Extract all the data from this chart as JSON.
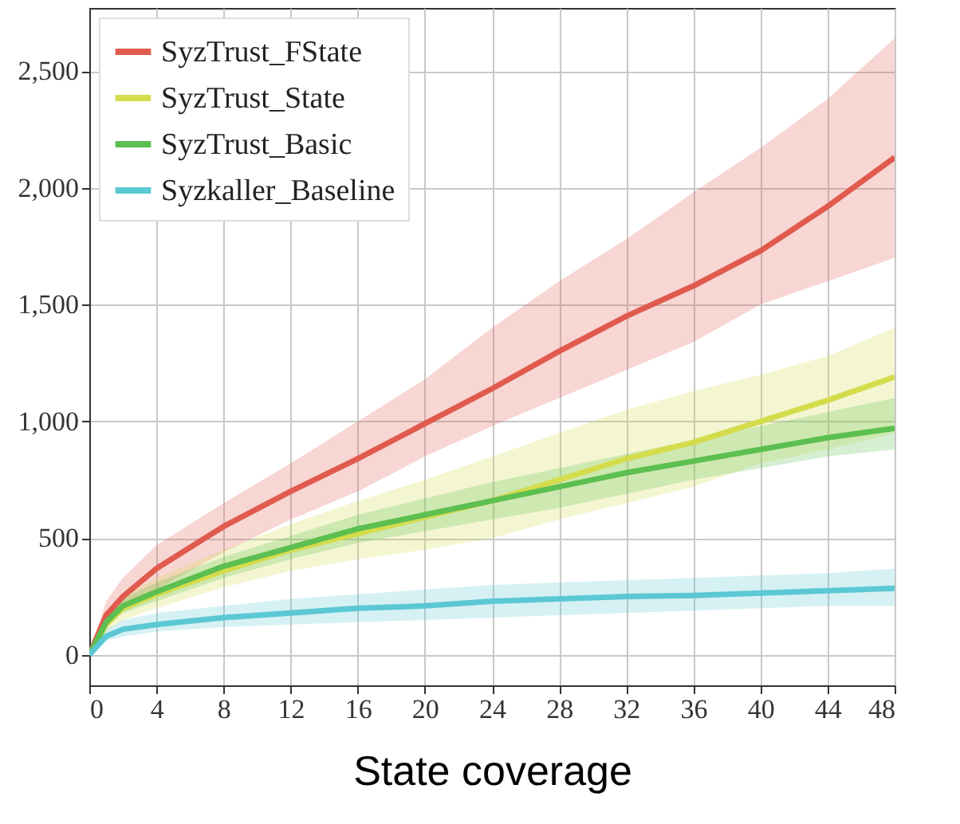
{
  "chart_data": {
    "type": "line",
    "xlabel": "State coverage",
    "x": [
      0,
      1,
      2,
      4,
      8,
      12,
      16,
      20,
      24,
      28,
      32,
      36,
      40,
      44,
      48
    ],
    "series": [
      {
        "name": "SyzTrust_FState",
        "color": "#e05a4e",
        "values": [
          0,
          170,
          250,
          370,
          550,
          700,
          840,
          990,
          1140,
          1300,
          1450,
          1580,
          1730,
          1920,
          2130
        ],
        "lower": [
          0,
          130,
          190,
          280,
          440,
          580,
          700,
          850,
          980,
          1100,
          1220,
          1340,
          1500,
          1600,
          1700
        ],
        "upper": [
          0,
          230,
          330,
          470,
          650,
          820,
          1000,
          1180,
          1400,
          1600,
          1780,
          1980,
          2170,
          2380,
          2640
        ]
      },
      {
        "name": "SyzTrust_State",
        "color": "#d4dc4c",
        "values": [
          0,
          130,
          200,
          260,
          360,
          450,
          520,
          590,
          660,
          750,
          840,
          910,
          1000,
          1090,
          1190
        ],
        "lower": [
          0,
          100,
          150,
          200,
          290,
          360,
          410,
          450,
          500,
          580,
          650,
          720,
          820,
          880,
          950
        ],
        "upper": [
          0,
          170,
          250,
          330,
          450,
          560,
          660,
          750,
          850,
          950,
          1050,
          1130,
          1200,
          1280,
          1400
        ]
      },
      {
        "name": "SyzTrust_Basic",
        "color": "#5cbf50",
        "values": [
          0,
          140,
          210,
          270,
          380,
          460,
          540,
          600,
          660,
          720,
          780,
          830,
          880,
          930,
          970
        ],
        "lower": [
          0,
          115,
          180,
          230,
          330,
          410,
          480,
          530,
          580,
          630,
          690,
          750,
          800,
          850,
          880
        ],
        "upper": [
          0,
          165,
          240,
          310,
          420,
          510,
          600,
          670,
          740,
          800,
          860,
          920,
          980,
          1040,
          1100
        ]
      },
      {
        "name": "Syzkaller_Baseline",
        "color": "#5bc8d4",
        "values": [
          0,
          80,
          110,
          130,
          160,
          180,
          200,
          210,
          230,
          240,
          250,
          255,
          265,
          275,
          285
        ],
        "lower": [
          0,
          60,
          80,
          100,
          120,
          130,
          140,
          150,
          160,
          170,
          180,
          190,
          200,
          210,
          210
        ],
        "upper": [
          0,
          110,
          150,
          180,
          210,
          240,
          260,
          280,
          300,
          310,
          320,
          330,
          340,
          350,
          370
        ]
      }
    ],
    "xlim": [
      0,
      48
    ],
    "xticks": [
      0,
      4,
      8,
      12,
      16,
      20,
      24,
      28,
      32,
      36,
      40,
      44,
      48
    ],
    "ylim": [
      -130,
      2770
    ],
    "yticks": [
      0,
      500,
      {
        "value": 1000,
        "label": "1,000"
      },
      {
        "value": 1500,
        "label": "1,500"
      },
      {
        "value": 2000,
        "label": "2,000"
      },
      {
        "value": 2500,
        "label": "2,500"
      }
    ],
    "grid": true,
    "legend": "top left",
    "marker": "none",
    "line_style": "solid"
  }
}
